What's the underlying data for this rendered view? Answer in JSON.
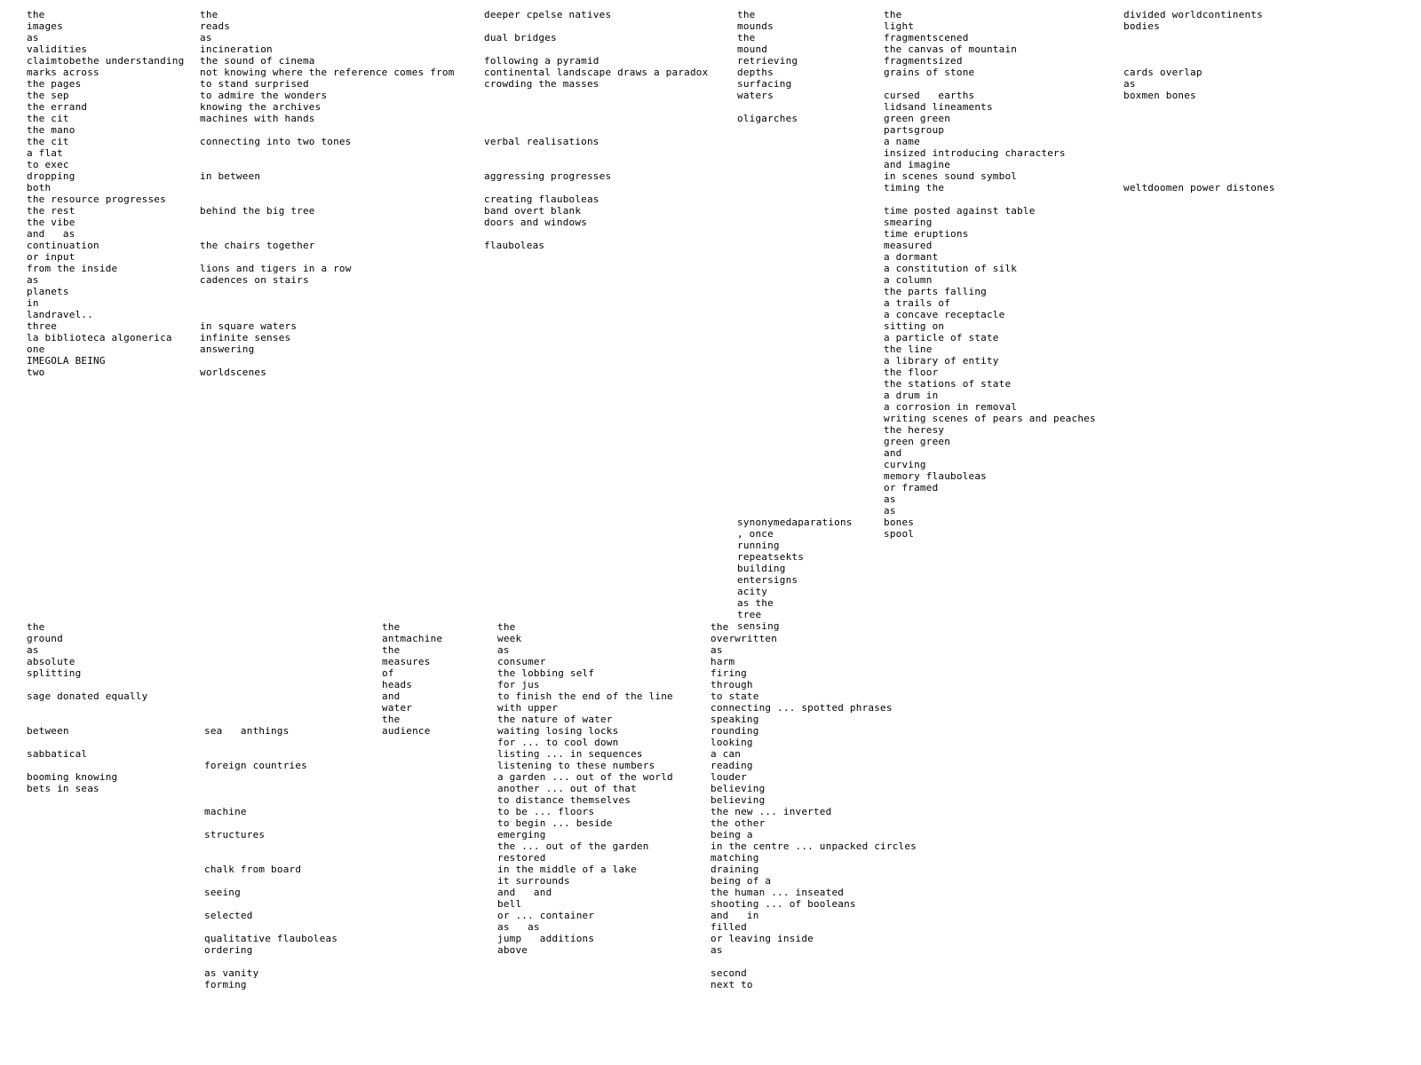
{
  "panels": {
    "a1": [
      "the",
      "images",
      "as",
      "validities",
      "claimtobethe understanding",
      "marks across",
      "the pages",
      "the sep",
      "the errand",
      "the cit",
      "the mano",
      "the cit",
      "a flat",
      "to exec",
      "dropping",
      "both",
      "the resource progresses",
      "the rest",
      "the vibe",
      "and   as",
      "continuation",
      "or input",
      "from the inside",
      "as",
      "planets",
      "in",
      "landravel..",
      "three",
      "la biblioteca algonerica",
      "one",
      "IMEGOLA BEING",
      "two"
    ],
    "a2": [
      "the",
      "ground",
      "as",
      "absolute",
      "splitting",
      "",
      "sage donated equally",
      "",
      "",
      "between",
      "",
      "sabbatical",
      "",
      "booming knowing",
      "bets in seas",
      "",
      "",
      "",
      "",
      "",
      "",
      "",
      "",
      "",
      "",
      "",
      "",
      "",
      "",
      "",
      ""
    ],
    "a3": [
      "the",
      "reads",
      "as",
      "incineration",
      "the sound of cinema",
      "not knowing where the reference comes from",
      "to stand surprised",
      "to admire the wonders",
      "knowing the archives",
      "machines with hands",
      "",
      "connecting into two tones",
      "",
      "",
      "in between",
      "",
      "",
      "behind the big tree",
      "",
      "",
      "the chairs together",
      "",
      "lions and tigers in a row",
      "cadences on stairs",
      "",
      "",
      "",
      "in square waters",
      "infinite senses",
      "answering",
      "",
      "worldscenes"
    ],
    "a4": [
      "deeper cpelse natives",
      "",
      "dual bridges",
      "",
      "following a pyramid",
      "continental landscape draws a paradox",
      "crowding the masses",
      "",
      "",
      "",
      "",
      "verbal realisations",
      "",
      "",
      "aggressing progresses",
      "",
      "creating flauboleas",
      "band overt blank",
      "doors and windows",
      "",
      "flauboleas"
    ],
    "b1": [
      "the",
      "mounds",
      "the",
      "mound",
      "retrieving",
      "depths",
      "surfacing",
      "waters",
      "",
      "oligarches",
      "",
      "",
      "",
      "",
      "",
      "",
      "",
      "",
      "",
      "",
      "",
      "",
      "",
      "",
      "",
      "",
      "",
      "",
      "",
      "",
      "",
      "",
      "",
      "",
      "",
      "",
      "",
      "",
      "",
      "",
      "",
      "",
      "",
      "",
      "synonymedaparations",
      ", once",
      "running",
      "repeatsekts",
      "building",
      "entersigns",
      "acity",
      "as the",
      "tree",
      "sensing"
    ],
    "b2": [
      "divided worldcontinents",
      "bodies",
      "",
      "",
      "",
      "cards overlap",
      "as",
      "boxmen bones",
      "",
      "",
      "",
      "",
      "",
      "",
      "",
      "weltdoomen power distones",
      "",
      "",
      "",
      "",
      "",
      "",
      "",
      "",
      "",
      "",
      "",
      "",
      "",
      "",
      "",
      "",
      ""
    ],
    "b3": [
      "the",
      "light",
      "fragmentscened",
      "the canvas of mountain",
      "fragmentsized",
      "grains of stone",
      "",
      "cursed   earths",
      "lidsand lineaments",
      "green green",
      "partsgroup",
      "a name",
      "insized introducing characters",
      "and imagine",
      "in scenes sound symbol",
      "timing the",
      "",
      "time posted against table",
      "smearing",
      "time eruptions",
      "measured",
      "a dormant",
      "a constitution of silk",
      "a column",
      "the parts falling",
      "a trails of",
      "a concave receptacle",
      "sitting on",
      "a particle of state",
      "the line",
      "a library of entity",
      "the floor",
      "the stations of state",
      "a drum in",
      "a corrosion in removal",
      "writing scenes of pears and peaches",
      "the heresy",
      "green green",
      "and",
      "curving",
      "memory flauboleas",
      "or framed",
      "as",
      "as",
      "bones",
      "spool"
    ],
    "b4": [
      "",
      "",
      "",
      "",
      "",
      "",
      "",
      "",
      "",
      "sea   anthings",
      "",
      "",
      "foreign countries",
      "",
      "",
      "",
      "machine",
      "",
      "structures",
      "",
      "",
      "chalk from board",
      "",
      "seeing",
      "",
      "selected",
      "",
      "qualitative flauboleas",
      "ordering",
      "",
      "as vanity",
      "forming"
    ],
    "c1": [
      "the",
      "antmachine",
      "the",
      "measures",
      "of",
      "heads",
      "and",
      "water",
      "the",
      "audience",
      "",
      "",
      "",
      "",
      "",
      "",
      "",
      "",
      "",
      "",
      "",
      "",
      "",
      "",
      "",
      ""
    ],
    "c2": [
      "the",
      "week",
      "as",
      "consumer",
      "the lobbing self",
      "for jus",
      "to finish the end of the line",
      "with upper",
      "the nature of water",
      "waiting losing locks",
      "for ... to cool down",
      "listing ... in sequences",
      "listening to these numbers",
      "a garden ... out of the world",
      "another ... out of that",
      "to distance themselves",
      "to be ... floors",
      "to begin ... beside",
      "emerging",
      "the ... out of the garden",
      "restored",
      "in the middle of a lake",
      "it surrounds",
      "and   and",
      "bell",
      "or ... container",
      "as   as",
      "jump   additions",
      "above"
    ],
    "c3": [
      "the",
      "overwritten",
      "as",
      "harm",
      "firing",
      "through",
      "to state",
      "connecting ... spotted phrases",
      "speaking",
      "rounding",
      "looking",
      "a can",
      "reading",
      "louder",
      "believing",
      "believing",
      "the new ... inverted",
      "the other",
      "being a",
      "in the centre ... unpacked circles",
      "matching",
      "draining",
      "being of a",
      "the human ... inseated",
      "shooting ... of booleans",
      "and   in",
      "filled",
      "or leaving inside",
      "as",
      "",
      "second",
      "next to"
    ]
  }
}
